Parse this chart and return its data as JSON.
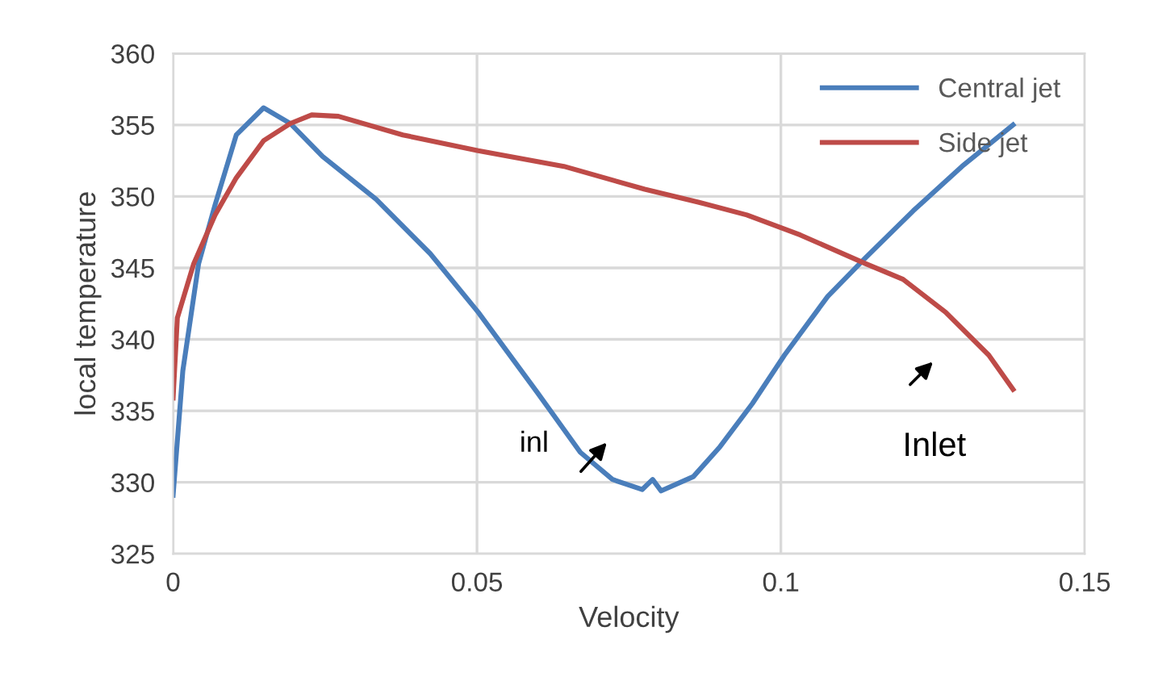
{
  "chart_data": {
    "type": "line",
    "xlabel": "Velocity",
    "ylabel": "local temperature",
    "xlim": [
      0,
      0.15
    ],
    "ylim": [
      325,
      360
    ],
    "xticks": [
      0,
      0.05,
      0.1,
      0.15
    ],
    "yticks": [
      325,
      330,
      335,
      340,
      345,
      350,
      355,
      360
    ],
    "grid": true,
    "legend": "top right",
    "marker": "none",
    "line_style": "solid",
    "series": [
      {
        "name": "Central jet",
        "color": "#4a7ebb",
        "x": [
          0,
          0.0016,
          0.0042,
          0.0069,
          0.0104,
          0.0149,
          0.0193,
          0.0246,
          0.0334,
          0.0423,
          0.0502,
          0.0599,
          0.067,
          0.0723,
          0.0772,
          0.0789,
          0.0803,
          0.0856,
          0.09,
          0.0953,
          0.1006,
          0.1077,
          0.1139,
          0.1218,
          0.1298,
          0.1382
        ],
        "values": [
          329.1,
          337.8,
          345.3,
          349.4,
          354.3,
          356.2,
          355.1,
          352.8,
          349.8,
          346.0,
          341.9,
          336.3,
          332.1,
          330.2,
          329.5,
          330.2,
          329.4,
          330.4,
          332.5,
          335.5,
          338.9,
          343.0,
          345.7,
          349.0,
          352.1,
          355.0
        ]
      },
      {
        "name": "Side jet",
        "color": "#be4b48",
        "x": [
          0,
          0.0007,
          0.0034,
          0.0069,
          0.0104,
          0.0149,
          0.0193,
          0.0228,
          0.0272,
          0.0378,
          0.0502,
          0.0643,
          0.0776,
          0.0864,
          0.0944,
          0.1032,
          0.1139,
          0.1201,
          0.1271,
          0.1342,
          0.1382
        ],
        "values": [
          335.9,
          341.5,
          345.3,
          348.7,
          351.3,
          353.9,
          355.1,
          355.7,
          355.6,
          354.3,
          353.2,
          352.1,
          350.5,
          349.6,
          348.7,
          347.3,
          345.3,
          344.2,
          341.9,
          338.9,
          336.5
        ]
      }
    ],
    "annotations": [
      "inl",
      "Inlet"
    ]
  }
}
